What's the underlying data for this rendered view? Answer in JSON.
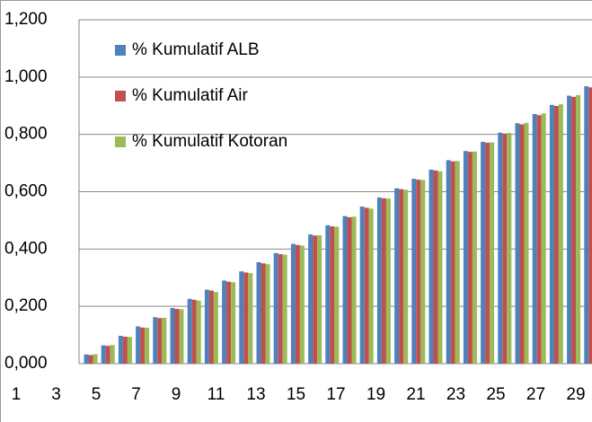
{
  "chart_data": {
    "type": "bar",
    "categories": [
      1,
      null,
      3,
      null,
      5,
      null,
      7,
      null,
      9,
      null,
      11,
      null,
      13,
      null,
      15,
      null,
      17,
      null,
      19,
      null,
      21,
      null,
      23,
      null,
      25,
      null,
      27,
      null,
      29,
      null
    ],
    "series": [
      {
        "name": "% Kumulatif ALB",
        "color": "#4f81bd",
        "values": [
          0.032,
          0.064,
          0.097,
          0.13,
          0.162,
          0.194,
          0.226,
          0.258,
          0.29,
          0.322,
          0.354,
          0.386,
          0.418,
          0.451,
          0.483,
          0.515,
          0.548,
          0.58,
          0.612,
          0.645,
          0.677,
          0.71,
          0.742,
          0.774,
          0.806,
          0.839,
          0.871,
          0.903,
          0.935,
          0.968
        ]
      },
      {
        "name": "% Kumulatif Air",
        "color": "#c0504d",
        "values": [
          0.03,
          0.062,
          0.094,
          0.126,
          0.159,
          0.191,
          0.223,
          0.255,
          0.286,
          0.318,
          0.35,
          0.382,
          0.414,
          0.447,
          0.479,
          0.511,
          0.544,
          0.577,
          0.609,
          0.642,
          0.674,
          0.706,
          0.739,
          0.771,
          0.803,
          0.835,
          0.867,
          0.899,
          0.931,
          0.964
        ]
      },
      {
        "name": "% Kumulatif Kotoran",
        "color": "#9bbb59",
        "values": [
          0.033,
          0.065,
          0.093,
          0.125,
          0.16,
          0.19,
          0.22,
          0.25,
          0.284,
          0.316,
          0.347,
          0.38,
          0.412,
          0.448,
          0.478,
          0.513,
          0.541,
          0.576,
          0.607,
          0.641,
          0.671,
          0.707,
          0.74,
          0.772,
          0.805,
          0.84,
          0.873,
          0.905,
          0.937,
          0.967
        ]
      }
    ],
    "ylim": [
      0,
      1.2
    ],
    "yticks": [
      {
        "value": 0,
        "label": "0,000"
      },
      {
        "value": 0.2,
        "label": "0,200"
      },
      {
        "value": 0.4,
        "label": "0,400"
      },
      {
        "value": 0.6,
        "label": "0,600"
      },
      {
        "value": 0.8,
        "label": "0,800"
      },
      {
        "value": 1.0,
        "label": "1,000"
      },
      {
        "value": 1.2,
        "label": "1,200"
      }
    ],
    "grid": true,
    "legend": "top-left"
  }
}
